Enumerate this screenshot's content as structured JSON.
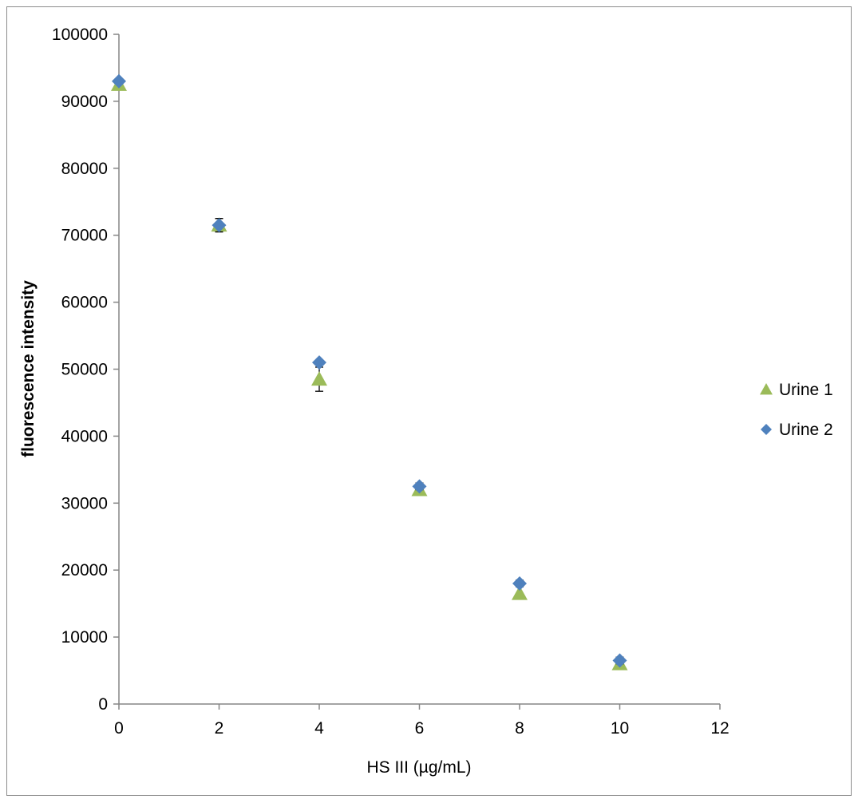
{
  "chart_data": {
    "type": "scatter",
    "title": "",
    "xlabel": "HS III (µg/mL)",
    "ylabel": "fluorescence intensity",
    "xlim": [
      0,
      12
    ],
    "ylim": [
      0,
      100000
    ],
    "x_ticks": [
      0,
      2,
      4,
      6,
      8,
      10,
      12
    ],
    "y_ticks": [
      0,
      10000,
      20000,
      30000,
      40000,
      50000,
      60000,
      70000,
      80000,
      90000,
      100000
    ],
    "x_tick_labels": [
      "0",
      "2",
      "4",
      "6",
      "8",
      "10",
      "12"
    ],
    "y_tick_labels": [
      "0",
      "10000",
      "20000",
      "30000",
      "40000",
      "50000",
      "60000",
      "70000",
      "80000",
      "90000",
      "100000"
    ],
    "grid": false,
    "legend_position": "right",
    "series": [
      {
        "name": "Urine 1",
        "marker": "triangle",
        "color": "#9BBB59",
        "x": [
          0,
          2,
          4,
          6,
          8,
          10
        ],
        "y": [
          92500,
          71500,
          48500,
          32000,
          16500,
          6000
        ],
        "error": [
          0,
          1000,
          1800,
          0,
          0,
          0
        ]
      },
      {
        "name": "Urine 2",
        "marker": "diamond",
        "color": "#4F81BD",
        "x": [
          0,
          2,
          4,
          6,
          8,
          10
        ],
        "y": [
          93000,
          71500,
          51000,
          32500,
          18000,
          6500
        ],
        "error": [
          0,
          1000,
          0,
          500,
          500,
          500
        ]
      }
    ]
  }
}
